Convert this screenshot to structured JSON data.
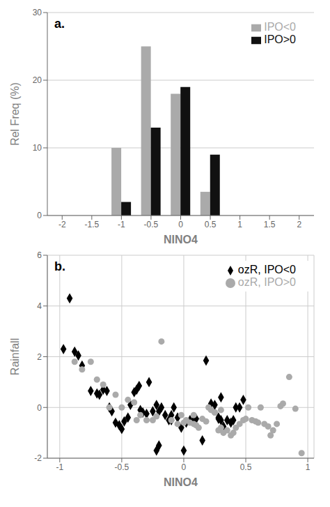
{
  "chart_data": [
    {
      "type": "bar",
      "x": [
        -1.0,
        -0.5,
        0.0,
        0.5
      ],
      "series": [
        {
          "name": "IPO<0",
          "color": "#aaaaaa",
          "values": [
            10.0,
            25.0,
            18.0,
            3.5
          ]
        },
        {
          "name": "IPO>0",
          "color": "#111111",
          "values": [
            2.0,
            13.0,
            19.0,
            9.0
          ]
        }
      ],
      "xlabel": "NINO4",
      "ylabel": "Rel Freq (%)",
      "xlim": [
        -2.25,
        2.25
      ],
      "xticks": [
        -2,
        -1.5,
        -1,
        -0.5,
        0,
        0.5,
        1,
        1.5,
        2
      ],
      "ylim": [
        0,
        30
      ],
      "yticks": [
        0,
        10,
        20,
        30
      ],
      "grid": "y",
      "legend": "upper right",
      "annotation": "a."
    },
    {
      "type": "scatter",
      "series": [
        {
          "name": "ozR, IPO<0",
          "color": "black",
          "marker": "diamond",
          "x": [
            -0.97,
            -0.92,
            -0.88,
            -0.85,
            -0.82,
            -0.75,
            -0.7,
            -0.68,
            -0.65,
            -0.62,
            -0.6,
            -0.58,
            -0.55,
            -0.52,
            -0.5,
            -0.48,
            -0.45,
            -0.43,
            -0.4,
            -0.38,
            -0.36,
            -0.35,
            -0.33,
            -0.3,
            -0.28,
            -0.25,
            -0.22,
            -0.2,
            -0.18,
            -0.15,
            -0.12,
            -0.1,
            -0.08,
            -0.05,
            -0.02,
            0.0,
            0.02,
            0.05,
            0.08,
            0.1,
            0.15,
            0.18,
            0.22,
            0.25,
            0.28,
            0.3,
            0.32,
            0.35,
            0.38,
            0.42,
            0.45,
            0.48,
            0.3,
            0.28,
            0.4,
            -0.2,
            -0.22,
            -0.1
          ],
          "values": [
            2.3,
            4.3,
            2.2,
            2.05,
            1.65,
            0.65,
            0.55,
            0.5,
            0.7,
            0.65,
            0.0,
            -0.15,
            -0.6,
            -0.7,
            -0.85,
            -0.55,
            -0.4,
            0.1,
            0.6,
            0.7,
            0.85,
            -0.1,
            -0.2,
            -0.25,
            1.0,
            -0.15,
            0.1,
            -0.15,
            0.0,
            -0.3,
            -0.5,
            -0.5,
            0.0,
            -0.4,
            -0.8,
            -1.7,
            -0.6,
            -0.5,
            -0.5,
            -0.45,
            -1.3,
            1.85,
            0.15,
            0.1,
            -0.4,
            0.4,
            -0.75,
            -0.5,
            -0.6,
            0.0,
            0.0,
            0.3,
            -0.5,
            -0.45,
            -0.5,
            -1.5,
            -1.7,
            -0.3
          ]
        },
        {
          "name": "ozR, IPO>0",
          "color": "#aaaaaa",
          "marker": "circle",
          "x": [
            -0.88,
            -0.82,
            -0.75,
            -0.7,
            -0.65,
            -0.6,
            -0.55,
            -0.5,
            -0.45,
            -0.4,
            -0.35,
            -0.3,
            -0.22,
            -0.18,
            -0.1,
            -0.05,
            0.0,
            0.05,
            0.08,
            0.1,
            0.12,
            0.15,
            0.18,
            0.2,
            0.22,
            0.25,
            0.28,
            0.3,
            0.32,
            0.35,
            0.38,
            0.4,
            0.42,
            0.45,
            0.48,
            0.5,
            0.52,
            0.55,
            0.58,
            0.6,
            0.62,
            0.65,
            0.68,
            0.7,
            0.72,
            0.75,
            0.78,
            0.8,
            0.85,
            0.9,
            -0.02,
            0.02,
            0.08,
            -0.38,
            -0.25,
            0.25,
            0.3,
            0.95
          ],
          "values": [
            1.8,
            1.5,
            1.8,
            1.1,
            0.9,
            0.0,
            0.5,
            0.0,
            0.3,
            0.2,
            -0.3,
            -0.5,
            -0.35,
            2.6,
            -0.5,
            -0.65,
            -0.6,
            -0.6,
            -0.65,
            -0.7,
            -0.8,
            -0.45,
            -0.55,
            0.0,
            -0.1,
            -0.2,
            -0.9,
            -0.8,
            -1.0,
            -0.9,
            -1.1,
            -1.0,
            -0.8,
            -0.65,
            -0.5,
            -0.45,
            0.0,
            -0.5,
            -0.55,
            -0.6,
            0.0,
            -0.65,
            -0.75,
            -1.1,
            -0.9,
            -0.65,
            0.05,
            0.15,
            1.2,
            -0.05,
            -0.3,
            -0.5,
            -0.3,
            -0.5,
            -0.5,
            -0.2,
            -0.1,
            -1.8
          ]
        }
      ],
      "xlabel": "NINO4",
      "ylabel": "Rainfall",
      "xlim": [
        -1.1,
        1.05
      ],
      "xticks": [
        -1,
        -0.5,
        0,
        0.5,
        1
      ],
      "ylim": [
        -2,
        6
      ],
      "yticks": [
        -2,
        0,
        2,
        4,
        6
      ],
      "grid": true,
      "legend": "upper right",
      "annotation": "b."
    }
  ]
}
